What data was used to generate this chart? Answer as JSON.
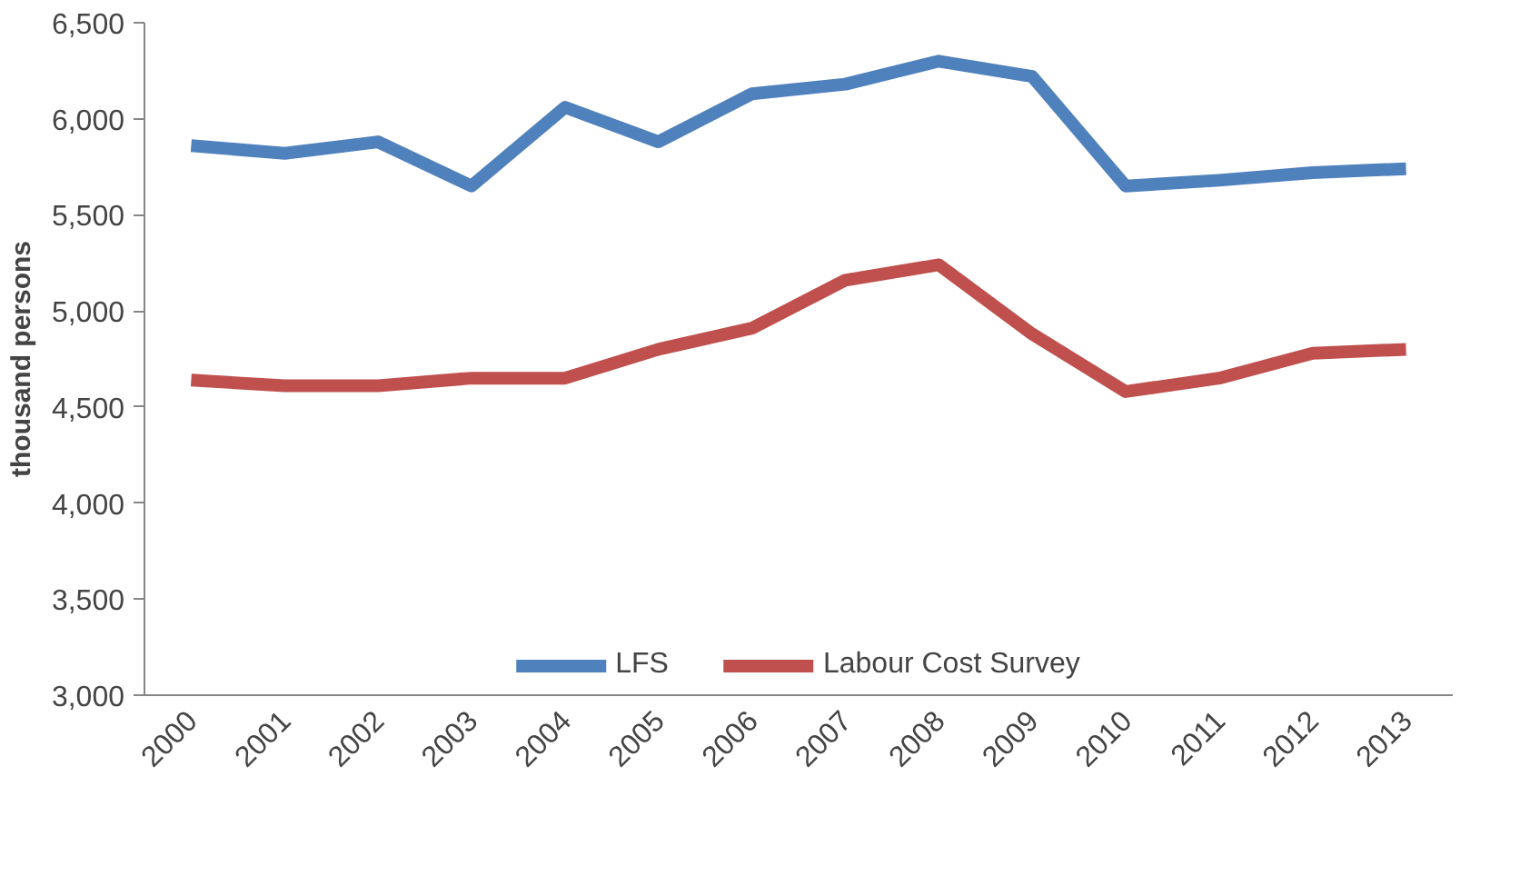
{
  "chart_data": {
    "type": "line",
    "ylabel": "thousand persons",
    "categories": [
      "2000",
      "2001",
      "2002",
      "2003",
      "2004",
      "2005",
      "2006",
      "2007",
      "2008",
      "2009",
      "2010",
      "2011",
      "2012",
      "2013"
    ],
    "series": [
      {
        "name": "LFS",
        "color": "#4f81bd",
        "values": [
          5860,
          5820,
          5880,
          5650,
          6060,
          5880,
          6130,
          6180,
          6300,
          6220,
          5650,
          5680,
          5720,
          5740
        ]
      },
      {
        "name": "Labour Cost Survey",
        "color": "#c0504d",
        "values": [
          4640,
          4610,
          4610,
          4650,
          4650,
          4800,
          4910,
          5160,
          5240,
          4880,
          4580,
          4650,
          4780,
          4800
        ]
      }
    ],
    "ylim": [
      3000,
      6500
    ],
    "yticks": [
      {
        "value": 3000,
        "label": "3,000"
      },
      {
        "value": 3500,
        "label": "3,500"
      },
      {
        "value": 4000,
        "label": "4,000"
      },
      {
        "value": 4500,
        "label": "4,500"
      },
      {
        "value": 5000,
        "label": "5,000"
      },
      {
        "value": 5500,
        "label": "5,500"
      },
      {
        "value": 6000,
        "label": "6,000"
      },
      {
        "value": 6500,
        "label": "6,500"
      }
    ],
    "grid": false,
    "legend": "bottom",
    "marker": "none",
    "line_style": "solid"
  }
}
